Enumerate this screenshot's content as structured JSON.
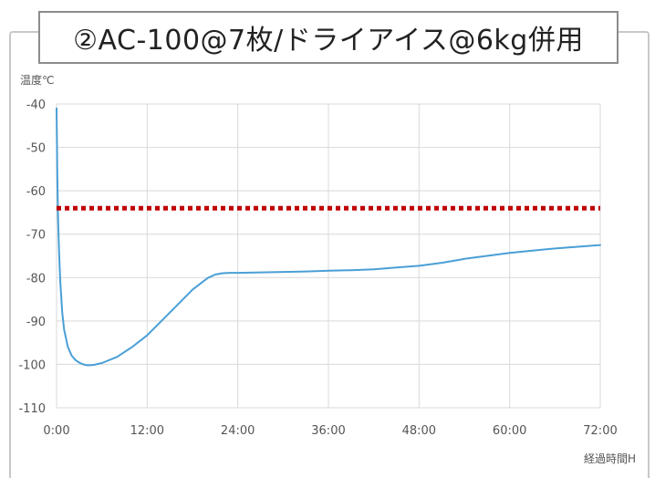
{
  "chart_data": {
    "type": "line",
    "title": "②AC-100@7枚/ドライアイス@6kg併用",
    "ylabel": "温度℃",
    "xlabel": "経過時間H",
    "xlim": [
      0,
      72
    ],
    "ylim": [
      -110,
      -40
    ],
    "x_ticks": [
      0,
      12,
      24,
      36,
      48,
      60,
      72
    ],
    "x_tick_labels": [
      "0:00",
      "12:00",
      "24:00",
      "36:00",
      "48:00",
      "60:00",
      "72:00"
    ],
    "y_ticks": [
      -40,
      -50,
      -60,
      -70,
      -80,
      -90,
      -100,
      -110
    ],
    "y_tick_labels": [
      "-40",
      "-50",
      "-60",
      "-70",
      "-80",
      "-90",
      "-100",
      "-110"
    ],
    "grid": true,
    "series": [
      {
        "color": "#4a9fd6",
        "style": "solid",
        "x": [
          0,
          0.1,
          0.2,
          0.35,
          0.5,
          0.75,
          1,
          1.5,
          2,
          2.5,
          3,
          3.5,
          4,
          4.5,
          5,
          6,
          8,
          10,
          12,
          14,
          16,
          18,
          20,
          21,
          22,
          23,
          24,
          27,
          30,
          33,
          36,
          39,
          42,
          45,
          48,
          51,
          54,
          57,
          60,
          63,
          66,
          69,
          72
        ],
        "y": [
          -41,
          -56,
          -67,
          -75,
          -81,
          -88,
          -92,
          -96,
          -98,
          -99,
          -99.6,
          -100,
          -100.2,
          -100.2,
          -100.1,
          -99.7,
          -98.3,
          -96,
          -93.3,
          -89.8,
          -86.3,
          -82.8,
          -80.1,
          -79.3,
          -79,
          -78.9,
          -78.9,
          -78.8,
          -78.7,
          -78.6,
          -78.4,
          -78.3,
          -78.1,
          -77.7,
          -77.3,
          -76.6,
          -75.7,
          -75,
          -74.3,
          -73.8,
          -73.3,
          -72.9,
          -72.5
        ]
      },
      {
        "color": "#c00000",
        "style": "dotted",
        "x": [
          0,
          72
        ],
        "y": [
          -64,
          -64
        ]
      }
    ]
  }
}
